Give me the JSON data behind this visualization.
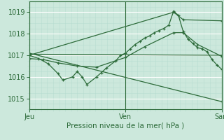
{
  "title": "",
  "xlabel": "Pression niveau de la mer( hPa )",
  "bg_color": "#cce8dc",
  "grid_color_major": "#ffffff",
  "grid_color_minor": "#b8ddd0",
  "line_color": "#2d6b3a",
  "ylim": [
    1014.5,
    1019.5
  ],
  "yticks": [
    1015,
    1016,
    1017,
    1018,
    1019
  ],
  "xlim": [
    0,
    2.0
  ],
  "day_ticks": [
    0.0,
    1.0,
    2.0
  ],
  "day_labels": [
    "Jeu",
    "Ven",
    "Sam"
  ],
  "lines": [
    [
      0.0,
      1017.0,
      0.1,
      1016.85,
      0.2,
      1016.6,
      0.3,
      1016.15,
      0.35,
      1015.85,
      0.45,
      1016.0,
      0.5,
      1016.25,
      0.55,
      1016.0,
      0.6,
      1015.65,
      0.7,
      1016.0,
      0.75,
      1016.2,
      0.8,
      1016.4,
      0.9,
      1016.75,
      0.95,
      1017.0,
      1.0,
      1017.1,
      1.05,
      1017.3,
      1.1,
      1017.5,
      1.15,
      1017.65,
      1.2,
      1017.8,
      1.25,
      1017.9,
      1.3,
      1018.05,
      1.35,
      1018.15,
      1.4,
      1018.25,
      1.45,
      1018.4,
      1.5,
      1019.05,
      1.55,
      1018.85,
      1.6,
      1018.1,
      1.65,
      1017.75,
      1.7,
      1017.55,
      1.75,
      1017.35,
      1.8,
      1017.3,
      1.85,
      1017.15,
      1.9,
      1016.8,
      1.95,
      1016.55,
      2.0,
      1016.35
    ],
    [
      0.0,
      1016.85,
      0.15,
      1016.8,
      0.3,
      1016.65,
      0.5,
      1016.5,
      0.7,
      1016.45,
      1.0,
      1016.9,
      1.2,
      1017.4,
      1.5,
      1018.05,
      1.6,
      1018.05,
      1.75,
      1017.5,
      2.0,
      1016.95
    ],
    [
      0.0,
      1017.0,
      1.5,
      1019.0,
      1.6,
      1018.65,
      2.0,
      1018.6
    ],
    [
      0.0,
      1017.05,
      2.0,
      1017.0
    ],
    [
      0.0,
      1017.1,
      2.0,
      1014.85
    ]
  ]
}
